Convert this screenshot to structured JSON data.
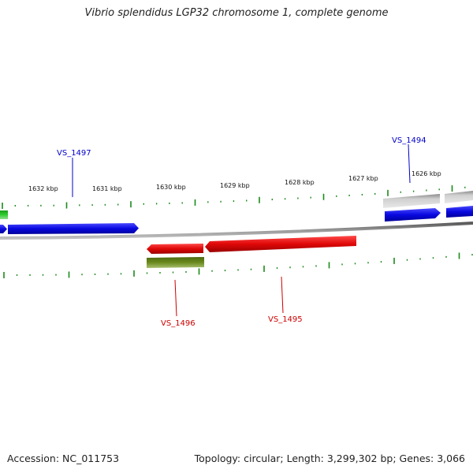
{
  "title": "Vibrio splendidus LGP32 chromosome 1, complete genome",
  "footer": {
    "accession": "Accession: NC_011753",
    "summary": "Topology: circular; Length: 3,299,302 bp; Genes: 3,066"
  },
  "colors": {
    "forward_gene": "#1010e8",
    "reverse_gene": "#e81010",
    "green_gene": "#2ec82e",
    "olive_gene": "#6a8a1e",
    "grey_gene": "#b8b8b8",
    "backbone": "#8a8a8a",
    "tick": "#1a8a1a",
    "forward_label": "#0000cc",
    "reverse_label": "#cc0000"
  },
  "scale_labels": [
    "1632 kbp",
    "1631 kbp",
    "1630 kbp",
    "1629 kbp",
    "1628 kbp",
    "1627 kbp",
    "1626 kbp"
  ],
  "gene_labels": [
    "VS_1497",
    "VS_1494",
    "VS_1496",
    "VS_1495"
  ]
}
